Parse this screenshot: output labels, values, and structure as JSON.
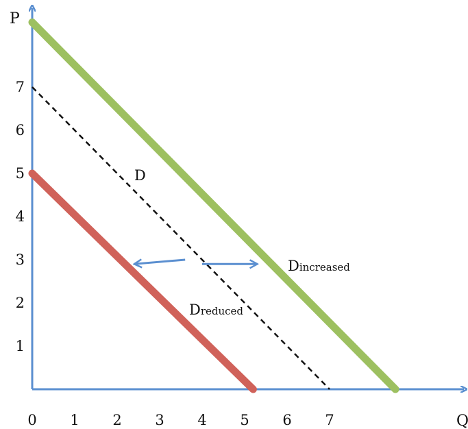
{
  "chart_data": {
    "type": "line",
    "xlabel": "Q",
    "ylabel": "P",
    "xlim": [
      0,
      9.7
    ],
    "ylim": [
      0,
      8.6
    ],
    "x_ticks": [
      "0",
      "1",
      "2",
      "3",
      "4",
      "5",
      "6",
      "7"
    ],
    "y_ticks": [
      "1",
      "2",
      "3",
      "4",
      "5",
      "6",
      "7"
    ],
    "series": [
      {
        "name": "D",
        "points": [
          [
            0,
            7
          ],
          [
            7,
            0
          ]
        ],
        "style": "dashed",
        "color": "#111111"
      },
      {
        "name_main": "D",
        "name_sub": "reduced",
        "points": [
          [
            0,
            5
          ],
          [
            5.2,
            0
          ]
        ],
        "style": "solid",
        "color": "#d0625a"
      },
      {
        "name_main": "D",
        "name_sub": "increased",
        "points": [
          [
            0,
            8.5
          ],
          [
            8.55,
            0
          ]
        ],
        "style": "solid",
        "color": "#9dc060"
      }
    ],
    "shift_arrows": [
      {
        "from": [
          3.6,
          3.0
        ],
        "to": [
          2.4,
          2.9
        ]
      },
      {
        "from": [
          4.0,
          2.9
        ],
        "to": [
          5.3,
          2.9
        ]
      }
    ],
    "colors": {
      "axis": "#5b8fd0",
      "arrow": "#5b8fd0"
    }
  }
}
